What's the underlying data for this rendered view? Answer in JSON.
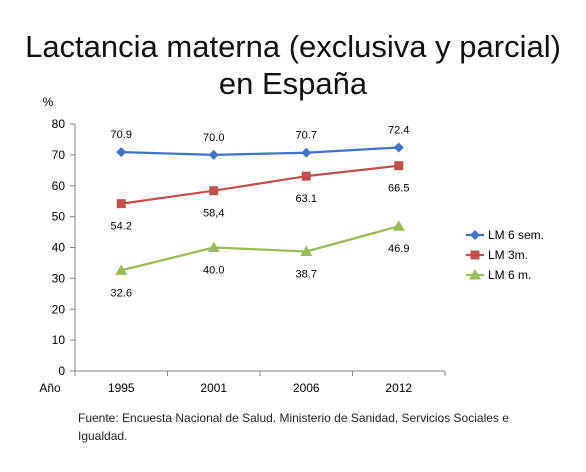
{
  "title_line1": "Lactancia materna (exclusiva y parcial)",
  "title_line2": "en España",
  "source_note": "Fuente: Encuesta Nacional de Salud. Ministerio de Sanidad, Servicios Sociales e Igualdad.",
  "chart_data": {
    "type": "line",
    "title": "Lactancia materna (exclusiva y parcial) en España",
    "ylabel": "%",
    "xlabel": "Año",
    "categories": [
      "1995",
      "2001",
      "2006",
      "2012"
    ],
    "ylim": [
      0,
      80
    ],
    "yticks": [
      0,
      10,
      20,
      30,
      40,
      50,
      60,
      70,
      80
    ],
    "grid": false,
    "legend_position": "right",
    "series": [
      {
        "name": "LM 6 sem.",
        "color": "#4572c4",
        "marker": "diamond",
        "values": [
          70.9,
          70.0,
          70.7,
          72.4
        ],
        "labels": [
          "70.9",
          "70.0",
          "70.7",
          "72.4"
        ],
        "label_side": "above"
      },
      {
        "name": "LM 3m.",
        "color": "#c0504d",
        "marker": "square",
        "values": [
          54.2,
          58.4,
          63.1,
          66.5
        ],
        "labels": [
          "54.2",
          "58,4",
          "63.1",
          "66.5"
        ],
        "label_side": "below"
      },
      {
        "name": "LM 6 m.",
        "color": "#9bbb59",
        "marker": "triangle",
        "values": [
          32.6,
          40.0,
          38.7,
          46.9
        ],
        "labels": [
          "32.6",
          "40.0",
          "38.7",
          "46.9"
        ],
        "label_side": "below"
      }
    ]
  }
}
